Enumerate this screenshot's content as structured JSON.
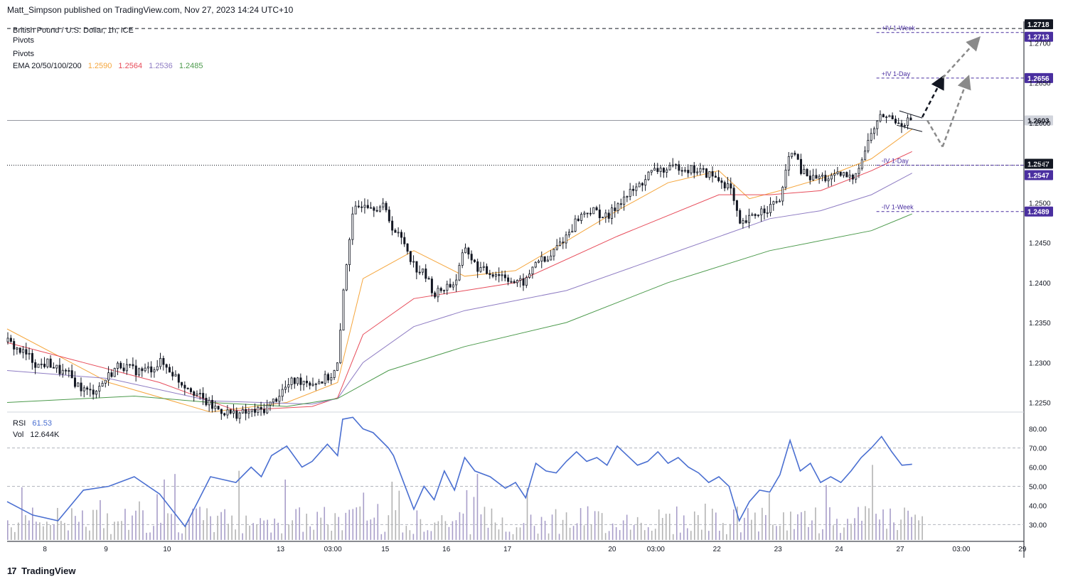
{
  "header": {
    "published": "Matt_Simpson published on TradingView.com, Nov 27, 2023 14:24 UTC+10"
  },
  "legend": {
    "symbol": "British Pound / U.S. Dollar, 1h, ICE",
    "pivots1": "Pivots",
    "pivots2": "Pivots",
    "ema_label": "EMA 20/50/100/200",
    "ema20": "1.2590",
    "ema50": "1.2564",
    "ema100": "1.2536",
    "ema200": "1.2485",
    "rsi_label": "RSI",
    "rsi_value": "61.53",
    "vol_label": "Vol",
    "vol_value": "12.644K"
  },
  "brand": {
    "logo": "17",
    "name": "TradingView"
  },
  "colors": {
    "ema20": "#f5a63d",
    "ema50": "#e74c5a",
    "ema100": "#8e7cc3",
    "ema200": "#4c9a4c",
    "rsi": "#4a6fd1",
    "badge": "#4a2fa0",
    "price_badge": "#131722"
  },
  "chart_data": [
    {
      "type": "candlestick",
      "title": "",
      "ylim": [
        1.2238,
        1.2727
      ],
      "y_ticks": [
        "1.2700",
        "1.2650",
        "1.2600",
        "1.2550",
        "1.2500",
        "1.2450",
        "1.2400",
        "1.2350",
        "1.2300",
        "1.2250"
      ],
      "x_ticks": [
        "8",
        "9",
        "10",
        "13",
        "03:00",
        "15",
        "16",
        "17",
        "20",
        "03:00",
        "22",
        "23",
        "24",
        "27",
        "03:00",
        "29"
      ],
      "close_path": [
        [
          0,
          1.2326
        ],
        [
          4,
          1.2316
        ],
        [
          8,
          1.2308
        ],
        [
          12,
          1.2296
        ],
        [
          16,
          1.23
        ],
        [
          20,
          1.229
        ],
        [
          24,
          1.2284
        ],
        [
          28,
          1.227
        ],
        [
          32,
          1.2262
        ],
        [
          36,
          1.227
        ],
        [
          40,
          1.2285
        ],
        [
          44,
          1.2298
        ],
        [
          48,
          1.2292
        ],
        [
          52,
          1.2289
        ],
        [
          56,
          1.2292
        ],
        [
          60,
          1.23
        ],
        [
          64,
          1.229
        ],
        [
          68,
          1.2275
        ],
        [
          72,
          1.2268
        ],
        [
          76,
          1.2255
        ],
        [
          80,
          1.2245
        ],
        [
          84,
          1.224
        ],
        [
          88,
          1.2236
        ],
        [
          92,
          1.2236
        ],
        [
          96,
          1.2238
        ],
        [
          100,
          1.224
        ],
        [
          104,
          1.225
        ],
        [
          108,
          1.2265
        ],
        [
          112,
          1.2276
        ],
        [
          116,
          1.2278
        ],
        [
          120,
          1.2275
        ],
        [
          124,
          1.2278
        ],
        [
          128,
          1.2285
        ],
        [
          130,
          1.23
        ],
        [
          132,
          1.239
        ],
        [
          134,
          1.245
        ],
        [
          136,
          1.2488
        ],
        [
          140,
          1.2502
        ],
        [
          144,
          1.2496
        ],
        [
          148,
          1.2494
        ],
        [
          152,
          1.2465
        ],
        [
          156,
          1.245
        ],
        [
          160,
          1.242
        ],
        [
          164,
          1.241
        ],
        [
          168,
          1.2385
        ],
        [
          172,
          1.2395
        ],
        [
          176,
          1.24
        ],
        [
          180,
          1.2445
        ],
        [
          184,
          1.242
        ],
        [
          188,
          1.2413
        ],
        [
          192,
          1.2412
        ],
        [
          196,
          1.2408
        ],
        [
          200,
          1.2398
        ],
        [
          204,
          1.2402
        ],
        [
          208,
          1.243
        ],
        [
          212,
          1.2425
        ],
        [
          216,
          1.2445
        ],
        [
          220,
          1.246
        ],
        [
          224,
          1.248
        ],
        [
          228,
          1.249
        ],
        [
          232,
          1.2488
        ],
        [
          236,
          1.248
        ],
        [
          240,
          1.25
        ],
        [
          244,
          1.251
        ],
        [
          248,
          1.252
        ],
        [
          252,
          1.2535
        ],
        [
          256,
          1.2542
        ],
        [
          260,
          1.254
        ],
        [
          264,
          1.2546
        ],
        [
          268,
          1.2542
        ],
        [
          272,
          1.254
        ],
        [
          276,
          1.2535
        ],
        [
          280,
          1.2528
        ],
        [
          284,
          1.252
        ],
        [
          288,
          1.247
        ],
        [
          292,
          1.248
        ],
        [
          296,
          1.249
        ],
        [
          300,
          1.2495
        ],
        [
          304,
          1.2505
        ],
        [
          306,
          1.2535
        ],
        [
          308,
          1.257
        ],
        [
          312,
          1.254
        ],
        [
          316,
          1.253
        ],
        [
          320,
          1.2532
        ],
        [
          324,
          1.253
        ],
        [
          328,
          1.2535
        ],
        [
          332,
          1.253
        ],
        [
          336,
          1.2555
        ],
        [
          340,
          1.259
        ],
        [
          344,
          1.261
        ],
        [
          348,
          1.2605
        ],
        [
          352,
          1.26
        ],
        [
          356,
          1.2605
        ]
      ],
      "series": [
        {
          "name": "EMA 20",
          "values": [
            [
              0,
              1.2342
            ],
            [
              40,
              1.2275
            ],
            [
              80,
              1.2238
            ],
            [
              110,
              1.225
            ],
            [
              130,
              1.2275
            ],
            [
              140,
              1.2405
            ],
            [
              160,
              1.244
            ],
            [
              180,
              1.2408
            ],
            [
              200,
              1.2415
            ],
            [
              220,
              1.2452
            ],
            [
              240,
              1.249
            ],
            [
              260,
              1.2525
            ],
            [
              280,
              1.254
            ],
            [
              292,
              1.2505
            ],
            [
              304,
              1.2515
            ],
            [
              320,
              1.253
            ],
            [
              340,
              1.2555
            ],
            [
              356,
              1.2592
            ]
          ]
        },
        {
          "name": "EMA 50",
          "values": [
            [
              0,
              1.2325
            ],
            [
              30,
              1.23
            ],
            [
              60,
              1.2275
            ],
            [
              90,
              1.224
            ],
            [
              120,
              1.2245
            ],
            [
              130,
              1.2256
            ],
            [
              140,
              1.2335
            ],
            [
              160,
              1.238
            ],
            [
              200,
              1.24
            ],
            [
              240,
              1.2458
            ],
            [
              280,
              1.251
            ],
            [
              300,
              1.251
            ],
            [
              320,
              1.2515
            ],
            [
              340,
              1.254
            ],
            [
              356,
              1.2564
            ]
          ]
        },
        {
          "name": "EMA 100",
          "values": [
            [
              0,
              1.229
            ],
            [
              40,
              1.228
            ],
            [
              80,
              1.2252
            ],
            [
              120,
              1.2248
            ],
            [
              130,
              1.2255
            ],
            [
              140,
              1.23
            ],
            [
              160,
              1.2345
            ],
            [
              180,
              1.2365
            ],
            [
              220,
              1.239
            ],
            [
              260,
              1.2435
            ],
            [
              300,
              1.248
            ],
            [
              320,
              1.249
            ],
            [
              340,
              1.251
            ],
            [
              356,
              1.2537
            ]
          ]
        },
        {
          "name": "EMA 200",
          "values": [
            [
              0,
              1.225
            ],
            [
              50,
              1.2258
            ],
            [
              80,
              1.225
            ],
            [
              110,
              1.2245
            ],
            [
              130,
              1.2255
            ],
            [
              150,
              1.229
            ],
            [
              180,
              1.232
            ],
            [
              220,
              1.235
            ],
            [
              260,
              1.24
            ],
            [
              300,
              1.244
            ],
            [
              340,
              1.2465
            ],
            [
              356,
              1.2486
            ]
          ]
        }
      ],
      "levels": [
        {
          "label": "+IV 1-Week",
          "value": 1.2713
        },
        {
          "label": "+IV 1-Day",
          "value": 1.2656
        },
        {
          "label": "-IV 1-Day",
          "value": 1.2547
        },
        {
          "label": "-IV 1-Week",
          "value": 1.2489
        }
      ],
      "price_badges": [
        {
          "label": "1.2718",
          "value": 1.2718,
          "style": "dark"
        },
        {
          "label": "1.2713",
          "value": 1.2713,
          "style": "purple"
        },
        {
          "label": "1.2656",
          "value": 1.2656,
          "style": "purple"
        },
        {
          "label": "1.2603",
          "value": 1.2603,
          "style": "grey"
        },
        {
          "label": "1.2547",
          "value": 1.2547,
          "style": "dark-outline"
        },
        {
          "label": "1.2547",
          "value": 1.2547,
          "style": "purple"
        },
        {
          "label": "1.2489",
          "value": 1.2489,
          "style": "purple"
        }
      ],
      "reference_lines": [
        {
          "value": 1.2718,
          "style": "dashed"
        },
        {
          "value": 1.2603,
          "style": "solid"
        },
        {
          "value": 1.2547,
          "style": "dotted"
        }
      ],
      "scenario_arrows": [
        {
          "color": "black",
          "from": [
            360,
            1.2607
          ],
          "to": [
            368,
            1.2656
          ]
        },
        {
          "color": "grey",
          "from": [
            362,
            1.2603
          ],
          "to": [
            368,
            1.257
          ]
        },
        {
          "color": "grey",
          "from": [
            368,
            1.257
          ],
          "to": [
            378,
            1.2656
          ]
        },
        {
          "color": "grey",
          "from": [
            368,
            1.2656
          ],
          "to": [
            382,
            1.2705
          ]
        }
      ]
    },
    {
      "type": "line",
      "title": "",
      "ylim": [
        22,
        88
      ],
      "y_ticks": [
        "80.00",
        "70.00",
        "60.00",
        "50.00",
        "40.00",
        "30.00"
      ],
      "series": [
        {
          "name": "RSI",
          "values": [
            [
              0,
              42
            ],
            [
              10,
              35
            ],
            [
              20,
              32
            ],
            [
              30,
              48
            ],
            [
              40,
              50
            ],
            [
              50,
              55
            ],
            [
              60,
              46
            ],
            [
              70,
              29
            ],
            [
              80,
              55
            ],
            [
              90,
              52
            ],
            [
              96,
              60
            ],
            [
              100,
              55
            ],
            [
              104,
              66
            ],
            [
              110,
              71
            ],
            [
              116,
              60
            ],
            [
              120,
              63
            ],
            [
              126,
              72
            ],
            [
              130,
              66
            ],
            [
              132,
              85
            ],
            [
              136,
              86
            ],
            [
              140,
              80
            ],
            [
              144,
              78
            ],
            [
              150,
              70
            ],
            [
              152,
              66
            ],
            [
              160,
              38
            ],
            [
              164,
              50
            ],
            [
              168,
              43
            ],
            [
              172,
              58
            ],
            [
              176,
              48
            ],
            [
              180,
              65
            ],
            [
              184,
              58
            ],
            [
              190,
              55
            ],
            [
              196,
              49
            ],
            [
              200,
              52
            ],
            [
              204,
              44
            ],
            [
              208,
              62
            ],
            [
              212,
              58
            ],
            [
              216,
              57
            ],
            [
              220,
              63
            ],
            [
              224,
              68
            ],
            [
              228,
              63
            ],
            [
              232,
              65
            ],
            [
              236,
              61
            ],
            [
              240,
              71
            ],
            [
              244,
              66
            ],
            [
              248,
              61
            ],
            [
              252,
              63
            ],
            [
              256,
              68
            ],
            [
              260,
              62
            ],
            [
              264,
              65
            ],
            [
              268,
              60
            ],
            [
              272,
              57
            ],
            [
              276,
              52
            ],
            [
              280,
              55
            ],
            [
              284,
              50
            ],
            [
              288,
              32
            ],
            [
              292,
              42
            ],
            [
              296,
              48
            ],
            [
              300,
              47
            ],
            [
              304,
              56
            ],
            [
              308,
              74
            ],
            [
              312,
              58
            ],
            [
              316,
              62
            ],
            [
              320,
              52
            ],
            [
              324,
              55
            ],
            [
              328,
              52
            ],
            [
              332,
              58
            ],
            [
              336,
              65
            ],
            [
              340,
              70
            ],
            [
              344,
              76
            ],
            [
              348,
              68
            ],
            [
              352,
              61
            ],
            [
              356,
              61.53
            ]
          ]
        }
      ]
    },
    {
      "type": "bar",
      "title": "",
      "name": "Vol",
      "note": "volume histogram overlaid on RSI pane"
    }
  ]
}
